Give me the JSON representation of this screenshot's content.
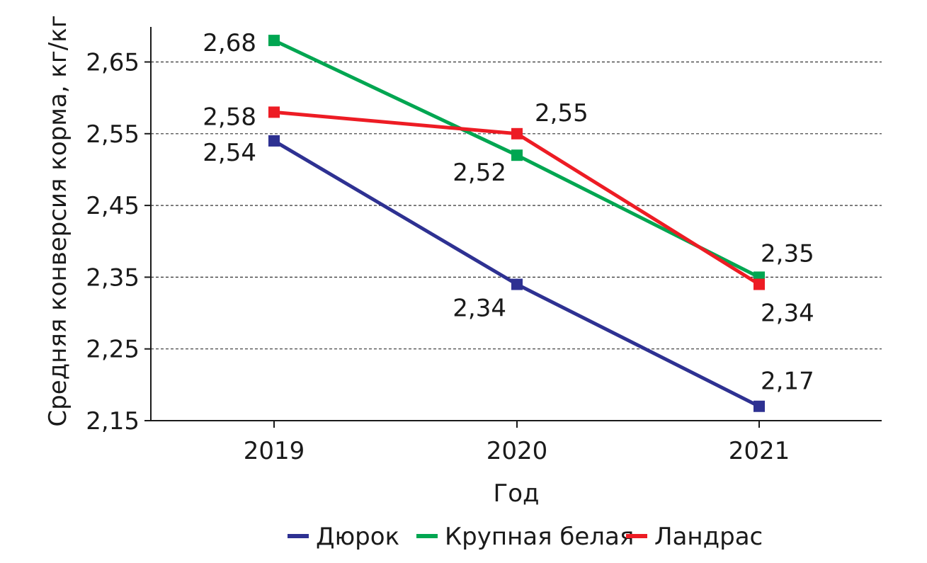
{
  "chart_data": {
    "type": "line",
    "xlabel": "Год",
    "ylabel": "Средняя конверсия корма, кг/кг",
    "x": [
      2019,
      2020,
      2021
    ],
    "x_tick_labels": [
      "2019",
      "2020",
      "2021"
    ],
    "ylim": [
      2.15,
      2.7
    ],
    "y_ticks": [
      2.15,
      2.25,
      2.35,
      2.45,
      2.55,
      2.65
    ],
    "y_tick_labels": [
      "2,15",
      "2,25",
      "2,35",
      "2,45",
      "2,55",
      "2,65"
    ],
    "grid": true,
    "legend_position": "bottom",
    "series": [
      {
        "name": "Дюрок",
        "color": "#2e3192",
        "values": [
          2.54,
          2.34,
          2.17
        ],
        "labels": [
          "2,54",
          "2,34",
          "2,17"
        ]
      },
      {
        "name": "Крупная белая",
        "color": "#00a651",
        "values": [
          2.68,
          2.52,
          2.35
        ],
        "labels": [
          "2,68",
          "2,52",
          "2,35"
        ]
      },
      {
        "name": "Ландрас",
        "color": "#ed1c24",
        "values": [
          2.58,
          2.55,
          2.34
        ],
        "labels": [
          "2,58",
          "2,55",
          "2,34"
        ]
      }
    ]
  }
}
